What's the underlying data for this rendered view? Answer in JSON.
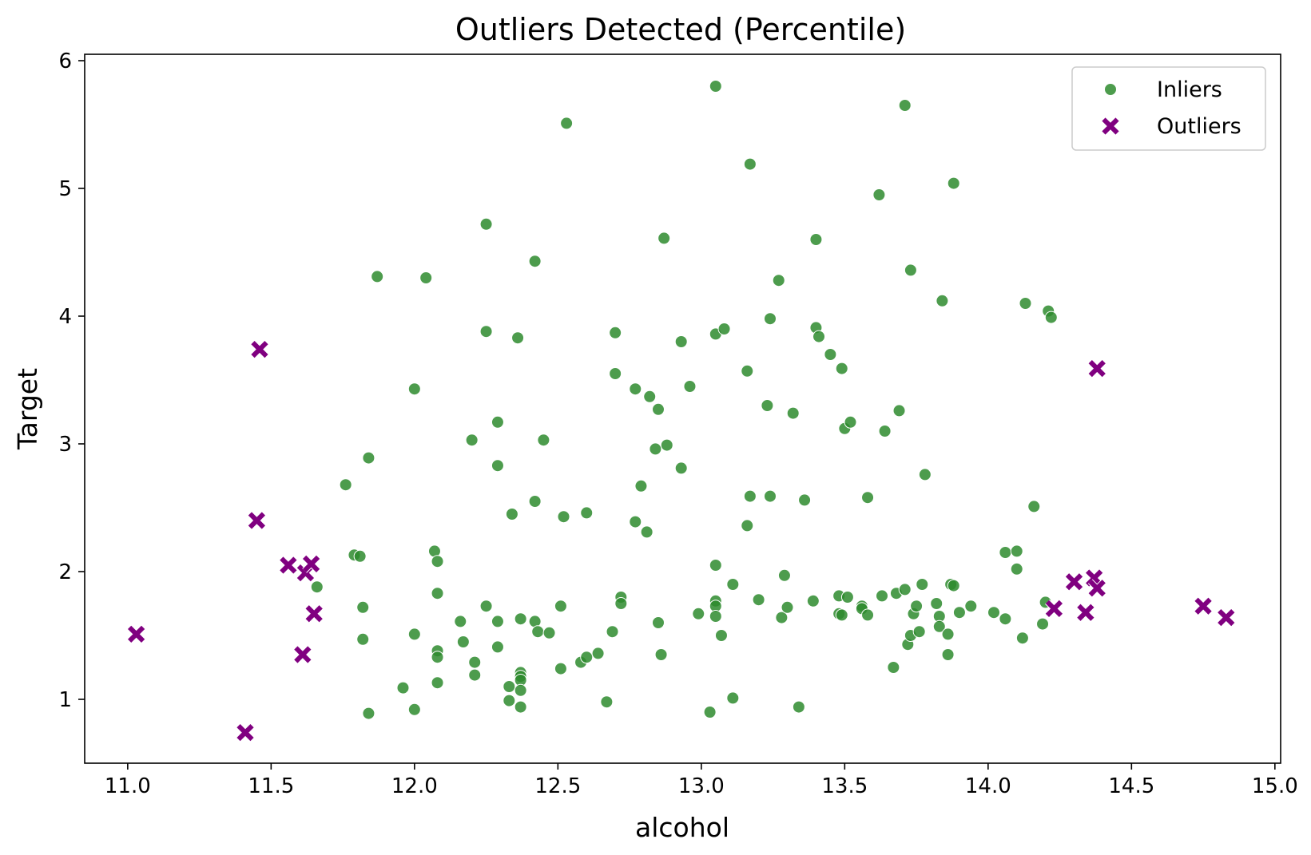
{
  "chart_data": {
    "type": "scatter",
    "title": "Outliers Detected (Percentile)",
    "xlabel": "alcohol",
    "ylabel": "Target",
    "xlim": [
      10.85,
      15.02
    ],
    "ylim": [
      0.5,
      6.05
    ],
    "xticks": [
      11.0,
      11.5,
      12.0,
      12.5,
      13.0,
      13.5,
      14.0,
      14.5,
      15.0
    ],
    "xtick_labels": [
      "11.0",
      "11.5",
      "12.0",
      "12.5",
      "13.0",
      "13.5",
      "14.0",
      "14.5",
      "15.0"
    ],
    "yticks": [
      1,
      2,
      3,
      4,
      5,
      6
    ],
    "ytick_labels": [
      "1",
      "2",
      "3",
      "4",
      "5",
      "6"
    ],
    "grid": false,
    "legend_position": "top-right",
    "series": [
      {
        "name": "Inliers",
        "marker": "circle",
        "color": "#2e8b2e",
        "points": [
          [
            11.66,
            1.88
          ],
          [
            11.76,
            2.68
          ],
          [
            11.79,
            2.13
          ],
          [
            11.81,
            2.12
          ],
          [
            11.82,
            1.72
          ],
          [
            11.82,
            1.47
          ],
          [
            11.84,
            2.89
          ],
          [
            11.84,
            0.89
          ],
          [
            11.87,
            4.31
          ],
          [
            11.96,
            1.09
          ],
          [
            12.0,
            3.43
          ],
          [
            12.0,
            1.51
          ],
          [
            12.0,
            0.92
          ],
          [
            12.04,
            4.3
          ],
          [
            12.07,
            2.16
          ],
          [
            12.08,
            2.08
          ],
          [
            12.08,
            1.83
          ],
          [
            12.08,
            1.38
          ],
          [
            12.08,
            1.33
          ],
          [
            12.08,
            1.13
          ],
          [
            12.16,
            1.61
          ],
          [
            12.17,
            1.45
          ],
          [
            12.2,
            3.03
          ],
          [
            12.21,
            1.29
          ],
          [
            12.21,
            1.19
          ],
          [
            12.25,
            4.72
          ],
          [
            12.25,
            3.88
          ],
          [
            12.25,
            1.73
          ],
          [
            12.29,
            3.17
          ],
          [
            12.29,
            2.83
          ],
          [
            12.29,
            1.61
          ],
          [
            12.29,
            1.41
          ],
          [
            12.33,
            1.1
          ],
          [
            12.33,
            0.99
          ],
          [
            12.34,
            2.45
          ],
          [
            12.36,
            3.83
          ],
          [
            12.37,
            1.63
          ],
          [
            12.37,
            1.21
          ],
          [
            12.37,
            1.18
          ],
          [
            12.37,
            1.15
          ],
          [
            12.37,
            1.07
          ],
          [
            12.37,
            0.94
          ],
          [
            12.42,
            4.43
          ],
          [
            12.42,
            2.55
          ],
          [
            12.42,
            1.61
          ],
          [
            12.43,
            1.53
          ],
          [
            12.45,
            3.03
          ],
          [
            12.47,
            1.52
          ],
          [
            12.51,
            1.73
          ],
          [
            12.51,
            1.24
          ],
          [
            12.52,
            2.43
          ],
          [
            12.53,
            5.51
          ],
          [
            12.58,
            1.29
          ],
          [
            12.6,
            2.46
          ],
          [
            12.6,
            1.33
          ],
          [
            12.64,
            1.36
          ],
          [
            12.67,
            0.98
          ],
          [
            12.69,
            1.53
          ],
          [
            12.7,
            3.87
          ],
          [
            12.7,
            3.55
          ],
          [
            12.72,
            1.8
          ],
          [
            12.72,
            1.75
          ],
          [
            12.77,
            3.43
          ],
          [
            12.77,
            2.39
          ],
          [
            12.79,
            2.67
          ],
          [
            12.81,
            2.31
          ],
          [
            12.82,
            3.37
          ],
          [
            12.84,
            2.96
          ],
          [
            12.85,
            3.27
          ],
          [
            12.85,
            1.6
          ],
          [
            12.86,
            1.35
          ],
          [
            12.87,
            4.61
          ],
          [
            12.88,
            2.99
          ],
          [
            12.93,
            3.8
          ],
          [
            12.93,
            2.81
          ],
          [
            12.96,
            3.45
          ],
          [
            12.99,
            1.67
          ],
          [
            13.03,
            0.9
          ],
          [
            13.05,
            5.8
          ],
          [
            13.05,
            3.86
          ],
          [
            13.05,
            2.05
          ],
          [
            13.05,
            1.77
          ],
          [
            13.05,
            1.73
          ],
          [
            13.05,
            1.65
          ],
          [
            13.07,
            1.5
          ],
          [
            13.08,
            3.9
          ],
          [
            13.11,
            1.9
          ],
          [
            13.11,
            1.01
          ],
          [
            13.16,
            3.57
          ],
          [
            13.16,
            2.36
          ],
          [
            13.17,
            5.19
          ],
          [
            13.17,
            2.59
          ],
          [
            13.2,
            1.78
          ],
          [
            13.23,
            3.3
          ],
          [
            13.24,
            3.98
          ],
          [
            13.24,
            2.59
          ],
          [
            13.27,
            4.28
          ],
          [
            13.28,
            1.64
          ],
          [
            13.29,
            1.97
          ],
          [
            13.3,
            1.72
          ],
          [
            13.32,
            3.24
          ],
          [
            13.34,
            0.94
          ],
          [
            13.36,
            2.56
          ],
          [
            13.39,
            1.77
          ],
          [
            13.4,
            4.6
          ],
          [
            13.4,
            3.91
          ],
          [
            13.41,
            3.84
          ],
          [
            13.45,
            3.7
          ],
          [
            13.48,
            1.81
          ],
          [
            13.48,
            1.67
          ],
          [
            13.49,
            3.59
          ],
          [
            13.49,
            1.66
          ],
          [
            13.5,
            3.12
          ],
          [
            13.51,
            1.8
          ],
          [
            13.52,
            3.17
          ],
          [
            13.56,
            1.73
          ],
          [
            13.56,
            1.71
          ],
          [
            13.58,
            2.58
          ],
          [
            13.58,
            1.66
          ],
          [
            13.62,
            4.95
          ],
          [
            13.63,
            1.81
          ],
          [
            13.64,
            3.1
          ],
          [
            13.67,
            1.25
          ],
          [
            13.68,
            1.83
          ],
          [
            13.69,
            3.26
          ],
          [
            13.71,
            5.65
          ],
          [
            13.71,
            1.86
          ],
          [
            13.72,
            1.43
          ],
          [
            13.73,
            4.36
          ],
          [
            13.73,
            1.5
          ],
          [
            13.74,
            1.67
          ],
          [
            13.75,
            1.73
          ],
          [
            13.76,
            1.53
          ],
          [
            13.77,
            1.9
          ],
          [
            13.78,
            2.76
          ],
          [
            13.82,
            1.75
          ],
          [
            13.83,
            1.65
          ],
          [
            13.83,
            1.57
          ],
          [
            13.84,
            4.12
          ],
          [
            13.86,
            1.51
          ],
          [
            13.86,
            1.35
          ],
          [
            13.87,
            1.9
          ],
          [
            13.88,
            5.04
          ],
          [
            13.88,
            1.89
          ],
          [
            13.9,
            1.68
          ],
          [
            13.94,
            1.73
          ],
          [
            14.02,
            1.68
          ],
          [
            14.06,
            2.15
          ],
          [
            14.06,
            1.63
          ],
          [
            14.1,
            2.16
          ],
          [
            14.1,
            2.02
          ],
          [
            14.12,
            1.48
          ],
          [
            14.13,
            4.1
          ],
          [
            14.16,
            2.51
          ],
          [
            14.19,
            1.59
          ],
          [
            14.2,
            1.76
          ],
          [
            14.21,
            4.04
          ],
          [
            14.22,
            3.99
          ]
        ]
      },
      {
        "name": "Outliers",
        "marker": "x",
        "color": "#800080",
        "points": [
          [
            11.03,
            1.51
          ],
          [
            11.41,
            0.74
          ],
          [
            11.45,
            2.4
          ],
          [
            11.46,
            3.74
          ],
          [
            11.56,
            2.05
          ],
          [
            11.61,
            1.35
          ],
          [
            11.62,
            1.99
          ],
          [
            11.64,
            2.06
          ],
          [
            11.65,
            1.67
          ],
          [
            14.23,
            1.71
          ],
          [
            14.3,
            1.92
          ],
          [
            14.34,
            1.68
          ],
          [
            14.37,
            1.95
          ],
          [
            14.38,
            3.59
          ],
          [
            14.38,
            1.87
          ],
          [
            14.75,
            1.73
          ],
          [
            14.83,
            1.64
          ]
        ]
      }
    ]
  }
}
